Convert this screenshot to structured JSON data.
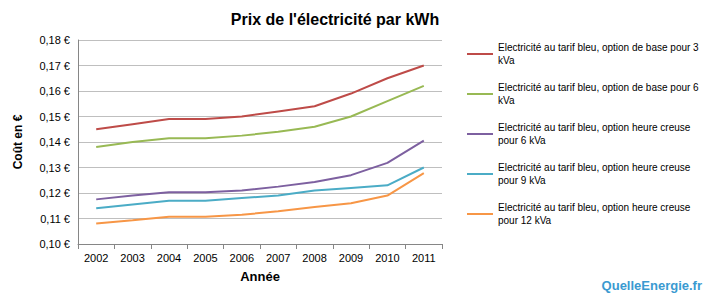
{
  "chart_data": {
    "type": "line",
    "title": "Prix de l'électricité par kWh",
    "x_label": "Année",
    "y_label": "Coût en €",
    "annotations": [
      "QuelleEnergie.fr"
    ],
    "categories": [
      "2002",
      "2003",
      "2004",
      "2005",
      "2006",
      "2007",
      "2008",
      "2009",
      "2010",
      "2011"
    ],
    "series": [
      {
        "name": "Electricité au tarif bleu, option de base pour 3 kVa",
        "color": "#be4b48",
        "values": [
          0.145,
          0.147,
          0.149,
          0.149,
          0.15,
          0.152,
          0.154,
          0.159,
          0.165,
          0.17
        ]
      },
      {
        "name": "Electricité au tarif bleu, option de base pour 6 kVa",
        "color": "#98b954",
        "values": [
          0.138,
          0.14,
          0.1415,
          0.1415,
          0.1425,
          0.144,
          0.146,
          0.15,
          0.156,
          0.162
        ]
      },
      {
        "name": "Electricité au tarif bleu, option heure creuse pour 6 kVa",
        "color": "#7d60a0",
        "values": [
          0.1175,
          0.119,
          0.1203,
          0.1203,
          0.121,
          0.1225,
          0.1243,
          0.127,
          0.1318,
          0.1405
        ]
      },
      {
        "name": "Electricité au tarif bleu, option heure creuse pour 9 kVa",
        "color": "#4bacc6",
        "values": [
          0.114,
          0.1155,
          0.117,
          0.117,
          0.118,
          0.119,
          0.121,
          0.122,
          0.123,
          0.13
        ]
      },
      {
        "name": "Electricité au tarif bleu, option heure creuse pour 12 kVa",
        "color": "#f79646",
        "values": [
          0.108,
          0.1093,
          0.1107,
          0.1107,
          0.1115,
          0.1128,
          0.1145,
          0.116,
          0.119,
          0.1278
        ]
      }
    ],
    "ylim": [
      0.1,
      0.18
    ],
    "yticks": [
      {
        "value": 0.1,
        "label": "0,10 €"
      },
      {
        "value": 0.11,
        "label": "0,11 €"
      },
      {
        "value": 0.12,
        "label": "0,12 €"
      },
      {
        "value": 0.13,
        "label": "0,13 €"
      },
      {
        "value": 0.14,
        "label": "0,14 €"
      },
      {
        "value": 0.15,
        "label": "0,15 €"
      },
      {
        "value": 0.16,
        "label": "0,16 €"
      },
      {
        "value": 0.17,
        "label": "0,17 €"
      },
      {
        "value": 0.18,
        "label": "0,18 €"
      }
    ],
    "grid": true,
    "legend": "right",
    "marker": "none"
  }
}
